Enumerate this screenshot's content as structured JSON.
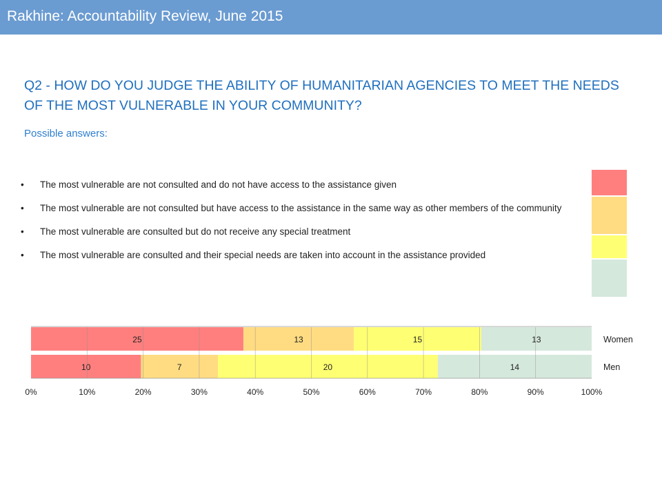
{
  "header": {
    "title": "Rakhine: Accountability Review, June 2015"
  },
  "question": "Q2 - HOW DO YOU JUDGE THE ABILITY OF HUMANITARIAN AGENCIES TO MEET THE NEEDS OF THE MOST VULNERABLE IN YOUR COMMUNITY?",
  "subtitle": "Possible answers:",
  "bullet": "•",
  "answers": [
    {
      "text": "The most vulnerable are not consulted and do not have access to the assistance given",
      "color": "#ff7f7f"
    },
    {
      "text": "The most vulnerable are not consulted but have access to the assistance in the same way as other members of the community",
      "color": "#ffdc82"
    },
    {
      "text": "The most vulnerable are consulted but do not receive any special treatment",
      "color": "#ffff73"
    },
    {
      "text": "The most vulnerable are consulted and their special needs are taken into account in the assistance provided",
      "color": "#d5e8dc"
    }
  ],
  "chart_data": {
    "type": "bar",
    "orientation": "horizontal",
    "stacked": "100%",
    "categories": [
      "Women",
      "Men"
    ],
    "series": [
      {
        "values": [
          25,
          10
        ],
        "color": "#ff7f7f"
      },
      {
        "values": [
          13,
          7
        ],
        "color": "#ffdc82"
      },
      {
        "values": [
          15,
          20
        ],
        "color": "#ffff73"
      },
      {
        "values": [
          13,
          14
        ],
        "color": "#d5e8dc"
      }
    ],
    "xticks": [
      "0%",
      "10%",
      "20%",
      "30%",
      "40%",
      "50%",
      "60%",
      "70%",
      "80%",
      "90%",
      "100%"
    ],
    "xlim": [
      0,
      100
    ],
    "grid": true
  }
}
